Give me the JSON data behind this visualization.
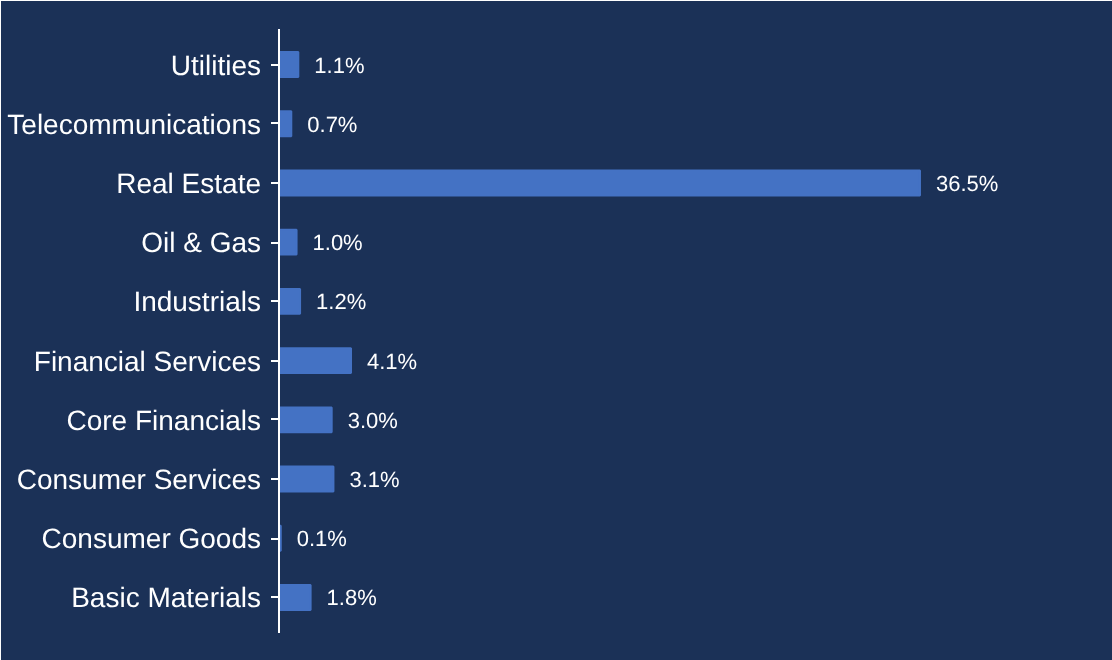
{
  "chart_data": {
    "type": "bar",
    "orientation": "horizontal",
    "categories": [
      "Utilities",
      "Telecommunications",
      "Real Estate",
      "Oil & Gas",
      "Industrials",
      "Financial Services",
      "Core Financials",
      "Consumer Services",
      "Consumer Goods",
      "Basic Materials"
    ],
    "values": [
      1.1,
      0.7,
      36.5,
      1.0,
      1.2,
      4.1,
      3.0,
      3.1,
      0.1,
      1.8
    ],
    "value_labels": [
      "1.1%",
      "0.7%",
      "36.5%",
      "1.0%",
      "1.2%",
      "4.1%",
      "3.0%",
      "3.1%",
      "0.1%",
      "1.8%"
    ],
    "color": "#4472c4",
    "grid": false
  }
}
